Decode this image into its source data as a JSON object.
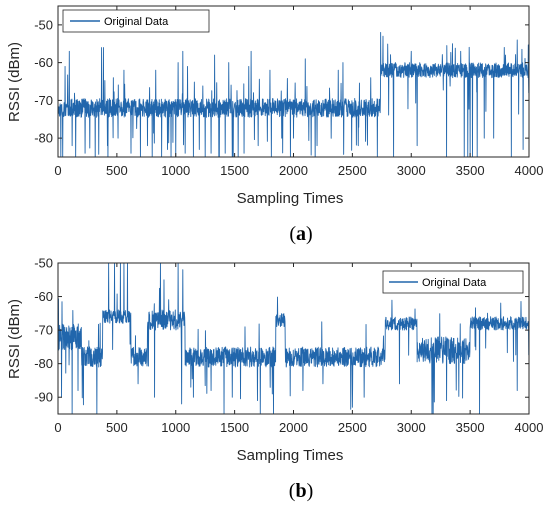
{
  "chart_data": [
    {
      "type": "line",
      "panel_label": "a",
      "xlabel": "Sampling Times",
      "ylabel": "RSSI (dBm)",
      "xlim": [
        0,
        4000
      ],
      "ylim": [
        -85,
        -45
      ],
      "xticks": [
        0,
        500,
        1000,
        1500,
        2000,
        2500,
        3000,
        3500,
        4000
      ],
      "yticks": [
        -50,
        -60,
        -70,
        -80
      ],
      "legend_position": "top-left",
      "grid": false,
      "series": [
        {
          "name": "Original Data",
          "color": "#2166ac",
          "n_samples": 4000,
          "levels": [
            {
              "x": [
                0,
                2740
              ],
              "value": -72,
              "noise": 2.5
            },
            {
              "x": [
                2740,
                4000
              ],
              "value": -62,
              "noise": 2.0
            }
          ],
          "upward_spikes": [
            {
              "x": 60,
              "value": -61
            },
            {
              "x": 95,
              "value": -57
            },
            {
              "x": 370,
              "value": -56
            },
            {
              "x": 385,
              "value": -56
            },
            {
              "x": 470,
              "value": -64
            },
            {
              "x": 560,
              "value": -62
            },
            {
              "x": 830,
              "value": -62
            },
            {
              "x": 1020,
              "value": -60
            },
            {
              "x": 1060,
              "value": -57
            },
            {
              "x": 1100,
              "value": -61
            },
            {
              "x": 1330,
              "value": -58
            },
            {
              "x": 1450,
              "value": -60
            },
            {
              "x": 1620,
              "value": -61
            },
            {
              "x": 1640,
              "value": -57
            },
            {
              "x": 1800,
              "value": -62
            },
            {
              "x": 2100,
              "value": -59
            },
            {
              "x": 2380,
              "value": -62
            },
            {
              "x": 2420,
              "value": -60
            },
            {
              "x": 2740,
              "value": -52
            },
            {
              "x": 2760,
              "value": -53
            },
            {
              "x": 3000,
              "value": -57
            },
            {
              "x": 3350,
              "value": -55
            },
            {
              "x": 3420,
              "value": -57
            },
            {
              "x": 3800,
              "value": -58
            },
            {
              "x": 3900,
              "value": -54
            }
          ],
          "downward_spikes": [
            {
              "x": 40,
              "value": -85
            },
            {
              "x": 120,
              "value": -82
            },
            {
              "x": 150,
              "value": -85
            },
            {
              "x": 230,
              "value": -84
            },
            {
              "x": 420,
              "value": -82
            },
            {
              "x": 510,
              "value": -80
            },
            {
              "x": 620,
              "value": -84
            },
            {
              "x": 700,
              "value": -85
            },
            {
              "x": 760,
              "value": -82
            },
            {
              "x": 800,
              "value": -85
            },
            {
              "x": 880,
              "value": -85
            },
            {
              "x": 930,
              "value": -83
            },
            {
              "x": 960,
              "value": -85
            },
            {
              "x": 1000,
              "value": -85
            },
            {
              "x": 1080,
              "value": -84
            },
            {
              "x": 1150,
              "value": -85
            },
            {
              "x": 1200,
              "value": -83
            },
            {
              "x": 1250,
              "value": -85
            },
            {
              "x": 1300,
              "value": -84
            },
            {
              "x": 1370,
              "value": -85
            },
            {
              "x": 1420,
              "value": -84
            },
            {
              "x": 1480,
              "value": -85
            },
            {
              "x": 1530,
              "value": -85
            },
            {
              "x": 1580,
              "value": -84
            },
            {
              "x": 1700,
              "value": -82
            },
            {
              "x": 1900,
              "value": -80
            },
            {
              "x": 2000,
              "value": -80
            },
            {
              "x": 2200,
              "value": -82
            },
            {
              "x": 2550,
              "value": -82
            },
            {
              "x": 2850,
              "value": -85
            },
            {
              "x": 3050,
              "value": -82
            },
            {
              "x": 3300,
              "value": -85
            },
            {
              "x": 3450,
              "value": -85
            },
            {
              "x": 3480,
              "value": -85
            },
            {
              "x": 3500,
              "value": -85
            },
            {
              "x": 3520,
              "value": -85
            },
            {
              "x": 3560,
              "value": -85
            },
            {
              "x": 3620,
              "value": -80
            },
            {
              "x": 3700,
              "value": -80
            },
            {
              "x": 3850,
              "value": -85
            },
            {
              "x": 3950,
              "value": -83
            }
          ]
        }
      ]
    },
    {
      "type": "line",
      "panel_label": "b",
      "xlabel": "Sampling Times",
      "ylabel": "RSSI (dBm)",
      "xlim": [
        0,
        4000
      ],
      "ylim": [
        -95,
        -50
      ],
      "xticks": [
        0,
        500,
        1000,
        1500,
        2000,
        2500,
        3000,
        3500,
        4000
      ],
      "yticks": [
        -50,
        -60,
        -70,
        -80,
        -90
      ],
      "legend_position": "top-right",
      "grid": false,
      "series": [
        {
          "name": "Original Data",
          "color": "#2166ac",
          "n_samples": 4000,
          "levels": [
            {
              "x": [
                0,
                200
              ],
              "value": -72,
              "noise": 4
            },
            {
              "x": [
                200,
                380
              ],
              "value": -78,
              "noise": 3
            },
            {
              "x": [
                380,
                620
              ],
              "value": -66,
              "noise": 2
            },
            {
              "x": [
                620,
                760
              ],
              "value": -78,
              "noise": 3
            },
            {
              "x": [
                760,
                1080
              ],
              "value": -67,
              "noise": 3
            },
            {
              "x": [
                1080,
                1850
              ],
              "value": -78,
              "noise": 3
            },
            {
              "x": [
                1850,
                1930
              ],
              "value": -67,
              "noise": 2
            },
            {
              "x": [
                1930,
                2780
              ],
              "value": -78,
              "noise": 3
            },
            {
              "x": [
                2780,
                3050
              ],
              "value": -68,
              "noise": 2
            },
            {
              "x": [
                3050,
                3500
              ],
              "value": -76,
              "noise": 4
            },
            {
              "x": [
                3500,
                4000
              ],
              "value": -68,
              "noise": 2
            }
          ],
          "upward_spikes": [
            {
              "x": 430,
              "value": -50
            },
            {
              "x": 480,
              "value": -50
            },
            {
              "x": 530,
              "value": -50
            },
            {
              "x": 560,
              "value": -50
            },
            {
              "x": 590,
              "value": -50
            },
            {
              "x": 870,
              "value": -50
            },
            {
              "x": 900,
              "value": -55
            },
            {
              "x": 1020,
              "value": -50
            },
            {
              "x": 1060,
              "value": -52
            }
          ],
          "downward_spikes": [
            {
              "x": 30,
              "value": -90
            },
            {
              "x": 120,
              "value": -95
            },
            {
              "x": 170,
              "value": -88
            },
            {
              "x": 330,
              "value": -95
            },
            {
              "x": 680,
              "value": -86
            },
            {
              "x": 820,
              "value": -90
            },
            {
              "x": 1050,
              "value": -92
            },
            {
              "x": 1150,
              "value": -90
            },
            {
              "x": 1300,
              "value": -88
            },
            {
              "x": 1480,
              "value": -90
            },
            {
              "x": 1820,
              "value": -89
            },
            {
              "x": 2080,
              "value": -88
            },
            {
              "x": 2250,
              "value": -86
            },
            {
              "x": 2500,
              "value": -93
            },
            {
              "x": 2600,
              "value": -90
            },
            {
              "x": 2900,
              "value": -86
            },
            {
              "x": 3300,
              "value": -91
            },
            {
              "x": 3580,
              "value": -95
            },
            {
              "x": 3900,
              "value": -88
            }
          ]
        }
      ]
    }
  ]
}
